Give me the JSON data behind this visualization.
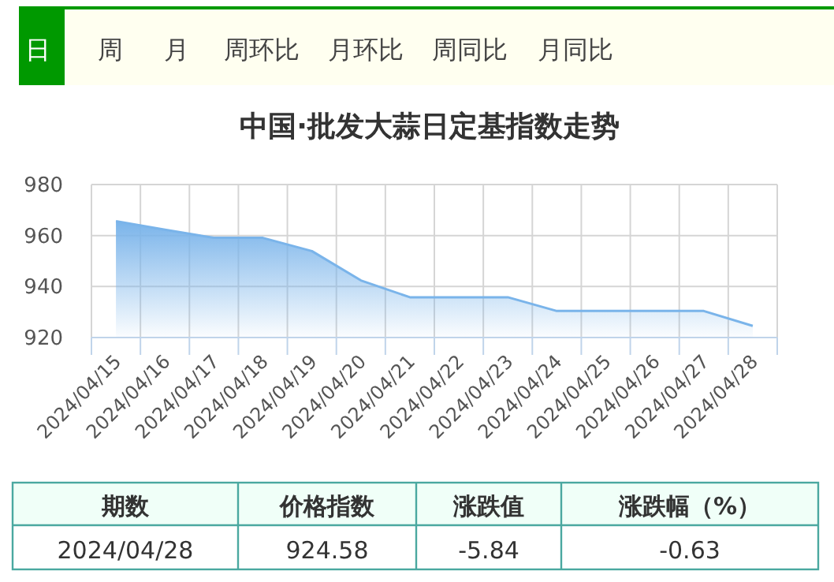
{
  "chart_data": {
    "type": "area",
    "title": "中国·批发大蒜日定基指数走势",
    "categories": [
      "2024/04/15",
      "2024/04/16",
      "2024/04/17",
      "2024/04/18",
      "2024/04/19",
      "2024/04/20",
      "2024/04/21",
      "2024/04/22",
      "2024/04/23",
      "2024/04/24",
      "2024/04/25",
      "2024/04/26",
      "2024/04/27",
      "2024/04/28"
    ],
    "series": [
      {
        "color": "#7ab4ea",
        "values": [
          965.6,
          962.3,
          959.1,
          959.1,
          953.9,
          942.4,
          935.8,
          935.8,
          935.8,
          930.4,
          930.4,
          930.4,
          930.4,
          924.58
        ]
      }
    ],
    "ylim": [
      920,
      980
    ],
    "yticks": [
      920,
      940,
      960,
      980
    ],
    "grid": true,
    "annotations": [
      "日",
      "周",
      "月",
      "周环比",
      "月环比",
      "周同比",
      "月同比",
      "期数",
      "价格指数",
      "涨跌值",
      "涨跌幅（%）",
      "2024/04/28",
      "924.58",
      "-5.84",
      "-0.63"
    ]
  }
}
